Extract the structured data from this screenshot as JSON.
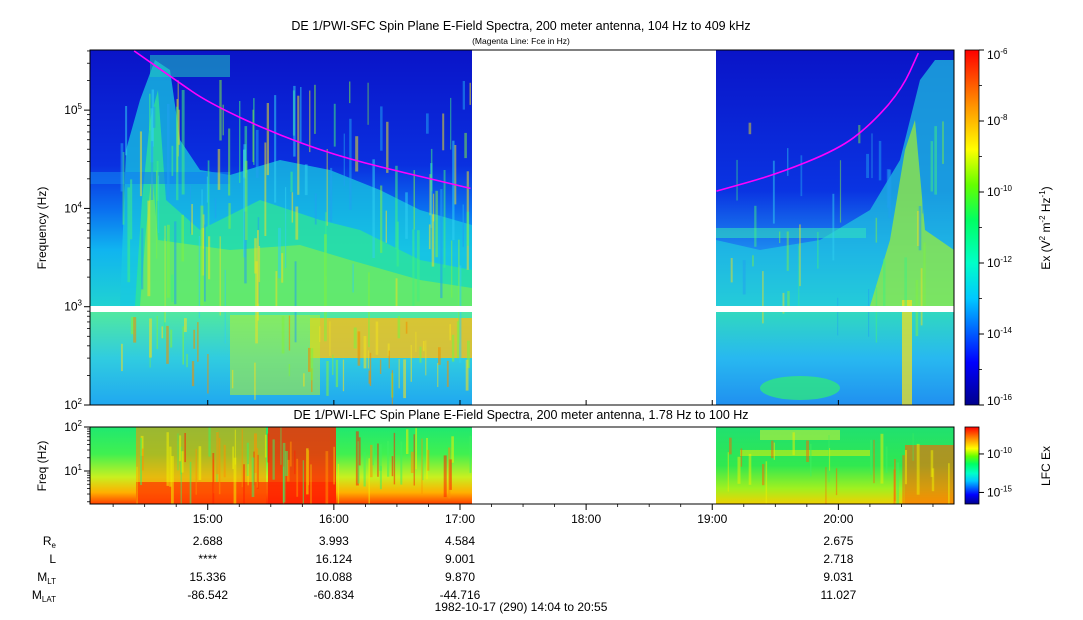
{
  "top_panel": {
    "title": "DE 1/PWI-SFC  Spin Plane E-Field Spectra, 200 meter antenna, 104 Hz to 409 kHz",
    "subtitle": "(Magenta Line: Fce in Hz)",
    "ylabel": "Frequency (Hz)",
    "colorbar_label_base": "Ex (V",
    "colorbar_label_mid": " m",
    "colorbar_label_end": " Hz",
    "colorbar_label_close": ")"
  },
  "bottom_panel": {
    "title": "DE 1/PWI-LFC  Spin Plane E-Field Spectra, 200 meter antenna, 1.78 Hz to 100 Hz",
    "ylabel": "Freq (Hz)",
    "colorbar_label": "LFC Ex"
  },
  "footer": {
    "date_range": "1982-10-17 (290) 14:04 to 20:55"
  },
  "ephemeris": {
    "row_labels": [
      {
        "base": "R",
        "sub": "e"
      },
      {
        "base": "L",
        "sub": ""
      },
      {
        "base": "M",
        "sub": "LT"
      },
      {
        "base": "M",
        "sub": "LAT"
      }
    ],
    "columns": [
      {
        "time": "15:00",
        "values": [
          "2.688",
          "****",
          "15.336",
          "-86.542"
        ]
      },
      {
        "time": "16:00",
        "values": [
          "3.993",
          "16.124",
          "10.088",
          "-60.834"
        ]
      },
      {
        "time": "17:00",
        "values": [
          "4.584",
          "9.001",
          "9.870",
          "-44.716"
        ]
      },
      {
        "time": "18:00",
        "values": [
          "",
          "",
          "",
          ""
        ]
      },
      {
        "time": "19:00",
        "values": [
          "",
          "",
          "",
          ""
        ]
      },
      {
        "time": "20:00",
        "values": [
          "2.675",
          "2.718",
          "9.031",
          "11.027"
        ]
      }
    ]
  },
  "chart_data": [
    {
      "type": "heatmap",
      "title": "DE 1/PWI-SFC  Spin Plane E-Field Spectra, 200 meter antenna, 104 Hz to 409 kHz",
      "subtitle": "(Magenta Line: Fce in Hz)",
      "ylabel": "Frequency (Hz)",
      "y_scale": "log",
      "ylim": [
        100,
        409000
      ],
      "xlim": [
        "14:04",
        "20:55"
      ],
      "data_gaps": [
        [
          "17:05",
          "19:02"
        ]
      ],
      "y_ticks": [
        {
          "base": "10",
          "exp": "2"
        },
        {
          "base": "10",
          "exp": "3"
        },
        {
          "base": "10",
          "exp": "4"
        },
        {
          "base": "10",
          "exp": "5"
        }
      ],
      "colorbar": {
        "scale": "log",
        "range": [
          1e-16,
          1e-06
        ],
        "ticks": [
          {
            "base": "10",
            "exp": "-6"
          },
          {
            "base": "10",
            "exp": "-8"
          },
          {
            "base": "10",
            "exp": "-10"
          },
          {
            "base": "10",
            "exp": "-12"
          },
          {
            "base": "10",
            "exp": "-14"
          },
          {
            "base": "10",
            "exp": "-16"
          }
        ]
      },
      "fce_line": {
        "color": "#ff00ff",
        "segments": [
          [
            [
              "14:25",
              400000
            ],
            [
              "14:45",
              200000
            ],
            [
              "15:00",
              120000
            ],
            [
              "15:30",
              60000
            ],
            [
              "16:00",
              35000
            ],
            [
              "16:30",
              24000
            ],
            [
              "17:00",
              17000
            ],
            [
              "17:05",
              16000
            ]
          ],
          [
            [
              "19:02",
              15000
            ],
            [
              "19:30",
              22000
            ],
            [
              "20:00",
              40000
            ],
            [
              "20:15",
              70000
            ],
            [
              "20:30",
              160000
            ],
            [
              "20:38",
              380000
            ]
          ]
        ]
      }
    },
    {
      "type": "heatmap",
      "title": "DE 1/PWI-LFC  Spin Plane E-Field Spectra, 200 meter antenna, 1.78 Hz to 100 Hz",
      "ylabel": "Freq (Hz)",
      "y_scale": "log",
      "ylim": [
        1.78,
        100
      ],
      "xlim": [
        "14:04",
        "20:55"
      ],
      "data_gaps": [
        [
          "17:05",
          "19:02"
        ]
      ],
      "y_ticks": [
        {
          "base": "10",
          "exp": "1"
        },
        {
          "base": "10",
          "exp": "2"
        }
      ],
      "x_ticks": [
        "15:00",
        "16:00",
        "17:00",
        "18:00",
        "19:00",
        "20:00"
      ],
      "colorbar": {
        "label": "LFC Ex",
        "scale": "log",
        "ticks": [
          {
            "base": "10",
            "exp": "-10"
          },
          {
            "base": "10",
            "exp": "-15"
          }
        ]
      }
    }
  ]
}
